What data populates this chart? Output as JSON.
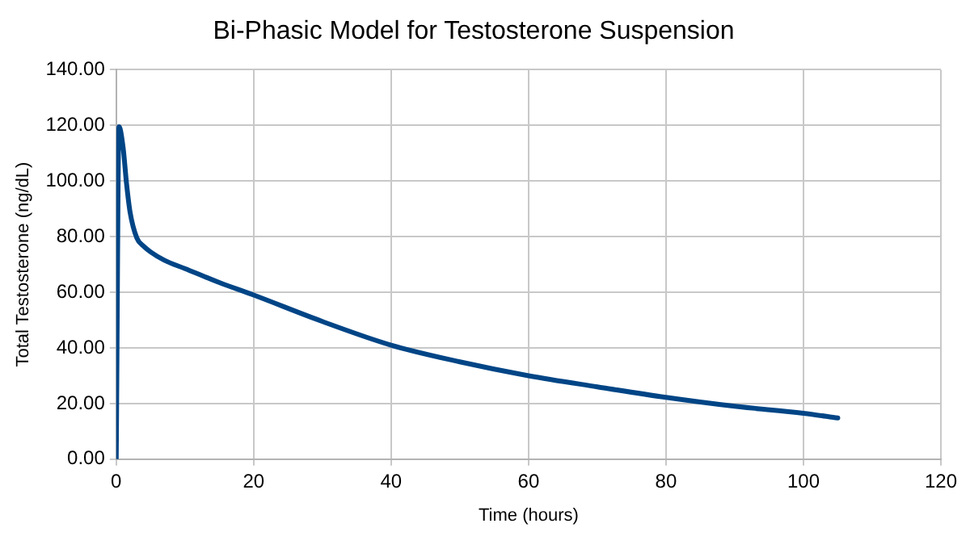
{
  "chart_data": {
    "type": "line",
    "title": "Bi-Phasic Model for Testosterone Suspension",
    "xlabel": "Time (hours)",
    "ylabel": "Total Testosterone (ng/dL)",
    "series": [
      {
        "color": "#004586",
        "x": [
          0,
          0.4,
          1,
          1.5,
          2,
          3,
          4,
          5,
          7,
          10,
          15,
          20,
          30,
          40,
          50,
          60,
          70,
          80,
          90,
          100,
          105
        ],
        "values": [
          0,
          119.5,
          112,
          99,
          89,
          79.5,
          76.5,
          74.5,
          71.5,
          68.5,
          63.5,
          59,
          49.5,
          41,
          35,
          30,
          26,
          22.2,
          19,
          16.5,
          14.8
        ]
      }
    ],
    "xlim": [
      0,
      120
    ],
    "xticks": [
      0,
      20,
      40,
      60,
      80,
      100,
      120
    ],
    "ylim": [
      0,
      140
    ],
    "yticks": [
      {
        "value": 0,
        "label": "0.00"
      },
      {
        "value": 20,
        "label": "20.00"
      },
      {
        "value": 40,
        "label": "40.00"
      },
      {
        "value": 60,
        "label": "60.00"
      },
      {
        "value": 80,
        "label": "80.00"
      },
      {
        "value": 100,
        "label": "100.00"
      },
      {
        "value": 120,
        "label": "120.00"
      },
      {
        "value": 140,
        "label": "140.00"
      }
    ],
    "grid": true,
    "legend": false,
    "marker": "none",
    "line_style": "solid"
  }
}
